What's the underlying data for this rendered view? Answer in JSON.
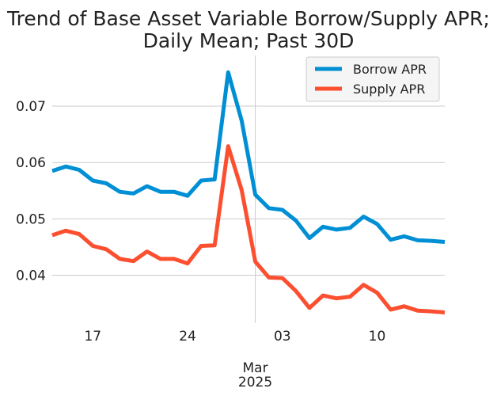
{
  "chart_data": {
    "type": "line",
    "title_lines": [
      "Trend of Base Asset Variable Borrow/Supply APR;",
      "Daily Mean; Past 30D"
    ],
    "x_tick_labels": [
      {
        "day": 5,
        "label": "17"
      },
      {
        "day": 12,
        "label": "24"
      },
      {
        "day": 19,
        "label": "03"
      },
      {
        "day": 26,
        "label": "10"
      }
    ],
    "x_major_label": {
      "day": 17,
      "month": "Mar",
      "year": "2025"
    },
    "xlim": [
      2,
      31
    ],
    "ylim": [
      0.0315,
      0.079
    ],
    "y_ticks": [
      0.04,
      0.05,
      0.06,
      0.07
    ],
    "y_tick_labels": [
      "0.04",
      "0.05",
      "0.06",
      "0.07"
    ],
    "x": [
      2,
      3,
      4,
      5,
      6,
      7,
      8,
      9,
      10,
      11,
      12,
      13,
      14,
      15,
      16,
      17,
      18,
      19,
      20,
      21,
      22,
      23,
      24,
      25,
      26,
      27,
      28,
      29,
      30,
      31
    ],
    "series": [
      {
        "name": "Borrow APR",
        "color": "#008fd5",
        "values": [
          0.0585,
          0.0593,
          0.0587,
          0.0568,
          0.0563,
          0.0548,
          0.0545,
          0.0558,
          0.0548,
          0.0548,
          0.0541,
          0.0568,
          0.057,
          0.076,
          0.0674,
          0.0543,
          0.0519,
          0.0516,
          0.0497,
          0.0466,
          0.0486,
          0.0481,
          0.0484,
          0.0504,
          0.0491,
          0.0463,
          0.0469,
          0.0462,
          0.0461,
          0.0459
        ]
      },
      {
        "name": "Supply APR",
        "color": "#fc4f30",
        "values": [
          0.0471,
          0.0479,
          0.0473,
          0.0452,
          0.0446,
          0.0429,
          0.0425,
          0.0442,
          0.0429,
          0.0429,
          0.0421,
          0.0452,
          0.0453,
          0.0629,
          0.0551,
          0.0424,
          0.0396,
          0.0395,
          0.0372,
          0.0342,
          0.0364,
          0.0359,
          0.0362,
          0.0383,
          0.0369,
          0.0339,
          0.0345,
          0.0337,
          0.0336,
          0.0334
        ]
      }
    ],
    "legend_position": "top-right",
    "grid": true
  }
}
